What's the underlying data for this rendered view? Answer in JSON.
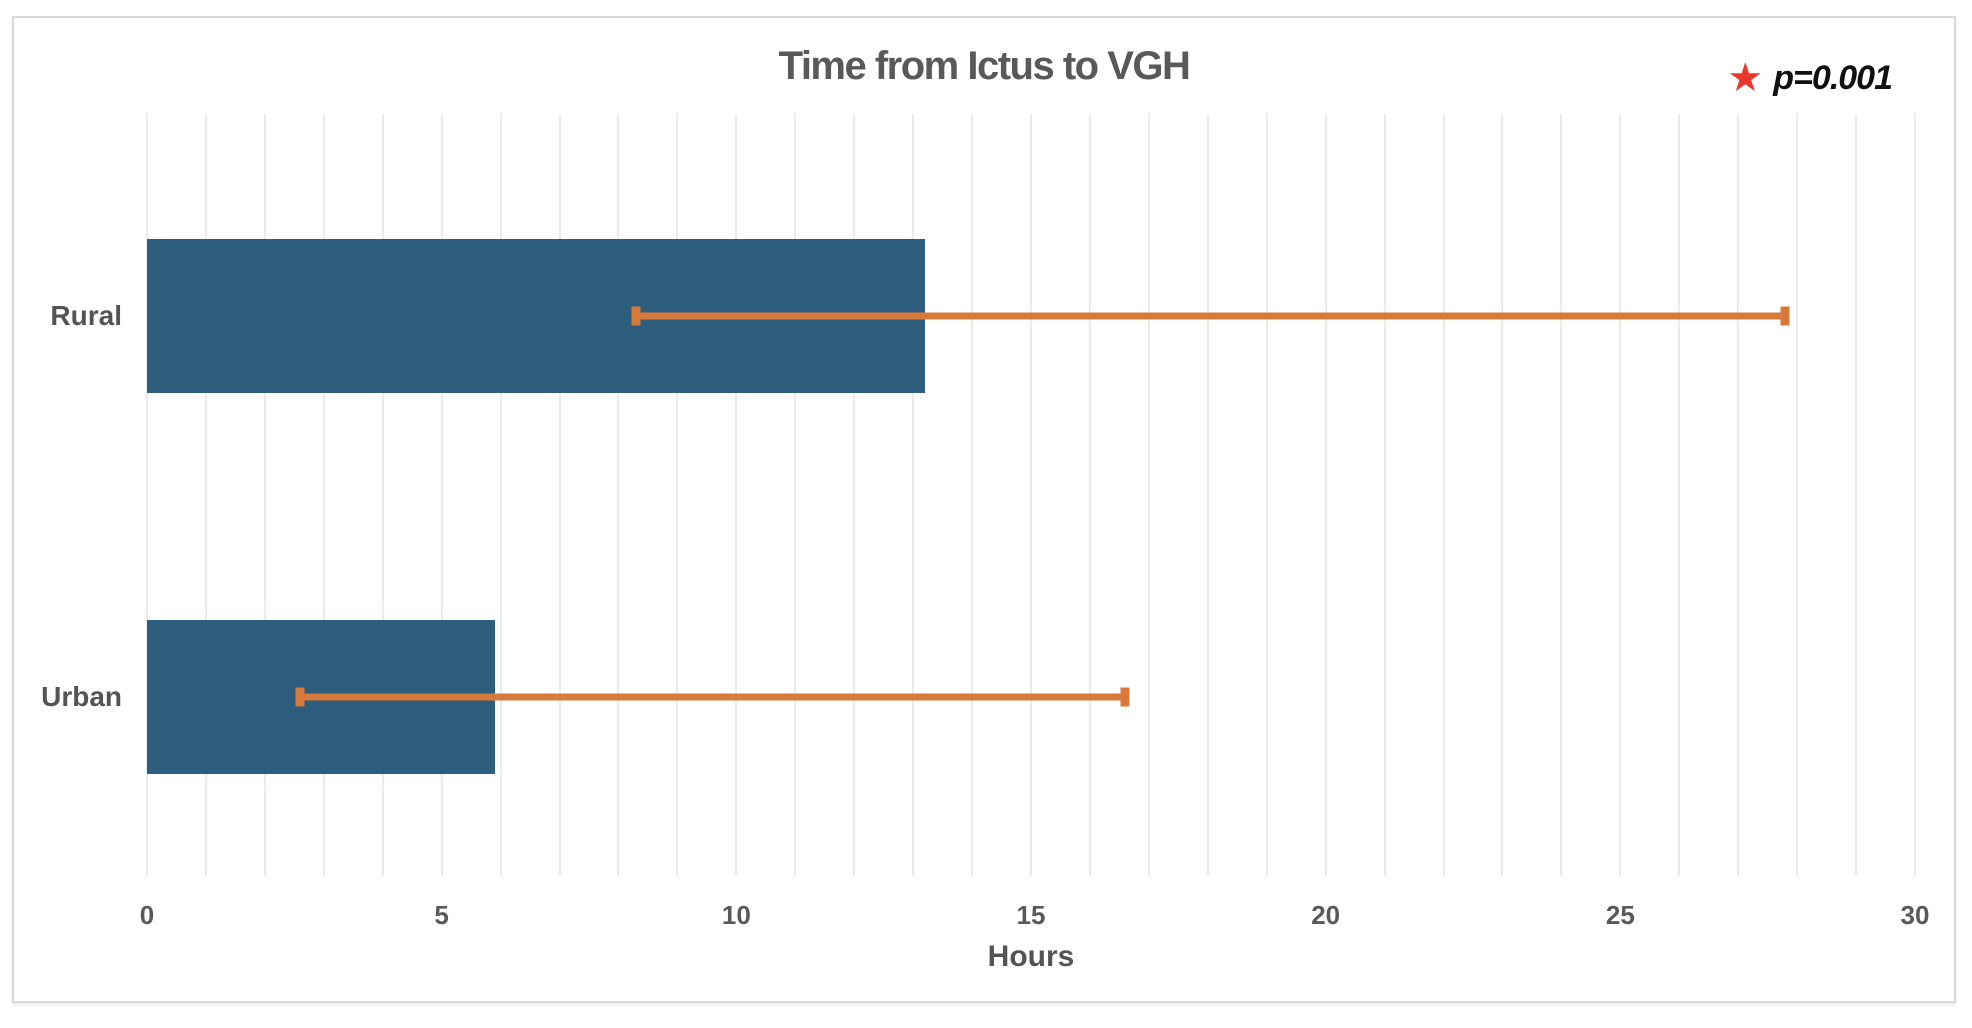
{
  "chart_data": {
    "type": "bar",
    "orientation": "horizontal",
    "title": "Time from Ictus to VGH",
    "xlabel": "Hours",
    "categories": [
      "Rural",
      "Urban"
    ],
    "values": [
      13.2,
      5.9
    ],
    "error_bars": [
      {
        "low": 8.3,
        "high": 27.8
      },
      {
        "low": 2.6,
        "high": 16.6
      }
    ],
    "xlim": [
      0,
      30
    ],
    "xticks": [
      "0",
      "5",
      "10",
      "15",
      "20",
      "25",
      "30"
    ],
    "xtick_values": [
      0,
      5,
      10,
      15,
      20,
      25,
      30
    ],
    "minor_grid_step": 1,
    "grid": true,
    "legend_position": "top-right",
    "bar_color": "#2E5E7E",
    "error_bar_color": "#D97A3D",
    "annotation": {
      "marker": "star-icon",
      "marker_glyph": "★",
      "marker_color": "#E8372B",
      "text": "p=0.001"
    }
  }
}
